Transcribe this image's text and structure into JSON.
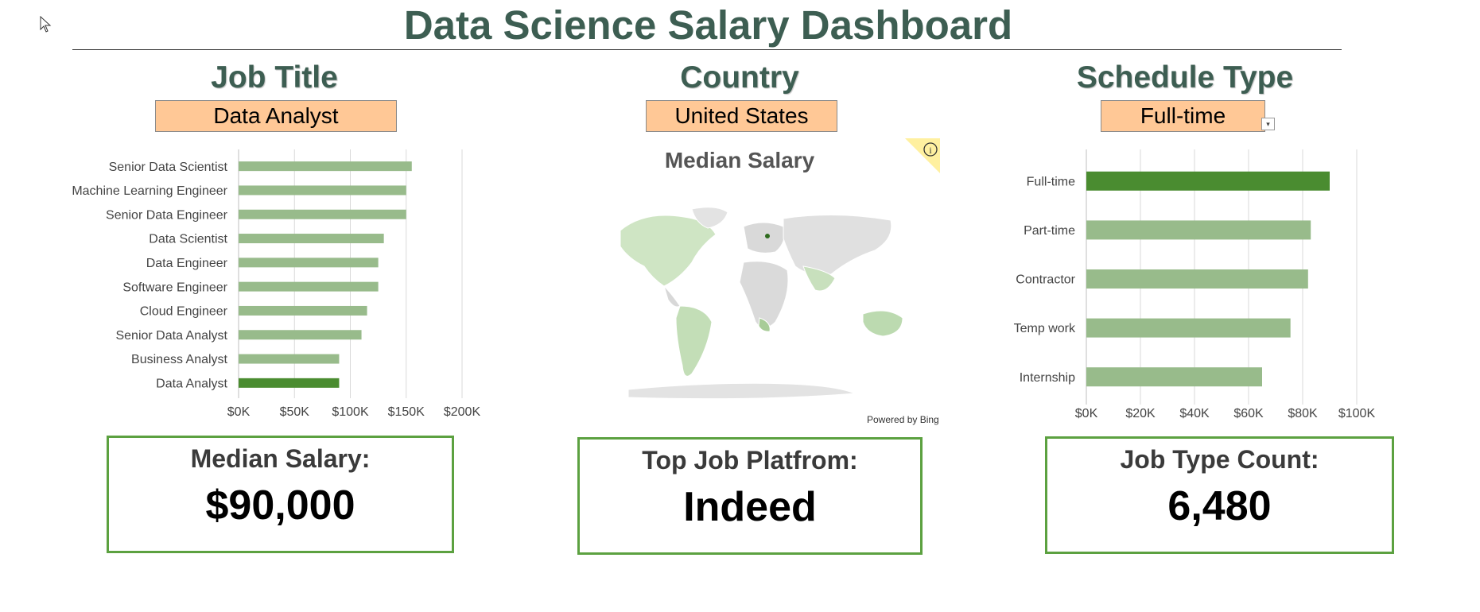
{
  "header": {
    "title": "Data Science Salary Dashboard"
  },
  "job_title": {
    "heading": "Job Title",
    "selected": "Data Analyst"
  },
  "country": {
    "heading": "Country",
    "selected": "United States",
    "map_title": "Median Salary",
    "attribution": "Powered by Bing"
  },
  "schedule_type": {
    "heading": "Schedule Type",
    "selected": "Full-time"
  },
  "kpis": {
    "median_salary": {
      "label": "Median Salary:",
      "value": "$90,000"
    },
    "top_platform": {
      "label": "Top Job Platfrom:",
      "value": "Indeed"
    },
    "job_type_count": {
      "label": "Job Type Count:",
      "value": "6,480"
    }
  },
  "colors": {
    "bar": "#98bb8b",
    "highlight": "#4a8c30",
    "kpi_border": "#5ca140",
    "selector_bg": "#ffc896",
    "heading": "#3d5e52"
  },
  "chart_data": [
    {
      "type": "bar",
      "orientation": "horizontal",
      "categories": [
        "Senior Data Scientist",
        "Machine Learning Engineer",
        "Senior Data Engineer",
        "Data Scientist",
        "Data Engineer",
        "Software Engineer",
        "Cloud Engineer",
        "Senior Data Analyst",
        "Business Analyst",
        "Data Analyst"
      ],
      "values": [
        155000,
        150000,
        150000,
        130000,
        125000,
        125000,
        115000,
        110000,
        90000,
        90000
      ],
      "highlight": "Data Analyst",
      "xlim": [
        0,
        200000
      ],
      "xticks": [
        "$0K",
        "$50K",
        "$100K",
        "$150K",
        "$200K"
      ],
      "grid": true
    },
    {
      "type": "bar",
      "orientation": "horizontal",
      "categories": [
        "Full-time",
        "Part-time",
        "Contractor",
        "Temp work",
        "Internship"
      ],
      "values": [
        90000,
        83000,
        82000,
        75500,
        65000
      ],
      "highlight": "Full-time",
      "xlim": [
        0,
        100000
      ],
      "xticks": [
        "$0K",
        "$20K",
        "$40K",
        "$60K",
        "$80K",
        "$100K"
      ],
      "grid": true
    }
  ]
}
